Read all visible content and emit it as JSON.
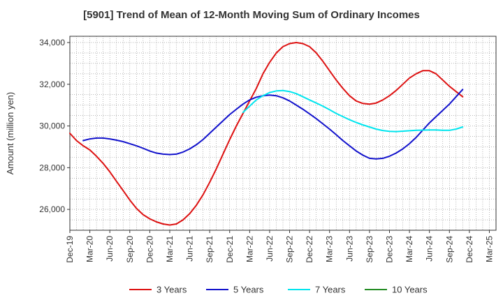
{
  "chart_data": {
    "type": "line",
    "title": "[5901]  Trend of Mean of 12-Month Moving Sum of Ordinary Incomes",
    "xlabel": "",
    "ylabel": "Amount (million yen)",
    "ylim": [
      25000,
      34300
    ],
    "yticks": [
      26000,
      28000,
      30000,
      32000,
      34000
    ],
    "ytick_labels": [
      "26,000",
      "28,000",
      "30,000",
      "32,000",
      "34,000"
    ],
    "grid": true,
    "legend_position": "bottom",
    "x_tick_labels": [
      "Dec-19",
      "Mar-20",
      "Jun-20",
      "Sep-20",
      "Dec-20",
      "Mar-21",
      "Jun-21",
      "Sep-21",
      "Dec-21",
      "Mar-22",
      "Jun-22",
      "Sep-22",
      "Dec-22",
      "Mar-23",
      "Jun-23",
      "Sep-23",
      "Dec-23",
      "Mar-24",
      "Jun-24",
      "Sep-24",
      "Dec-24",
      "Mar-25"
    ],
    "x_start": "Dec-19",
    "x_month_count": 64,
    "series": [
      {
        "name": "3 Years",
        "color": "#dd1111",
        "start_month": 0,
        "values": [
          29650,
          29300,
          29050,
          28850,
          28550,
          28200,
          27800,
          27350,
          26900,
          26450,
          26050,
          25750,
          25550,
          25400,
          25300,
          25250,
          25300,
          25500,
          25800,
          26200,
          26700,
          27300,
          27950,
          28650,
          29350,
          30000,
          30600,
          31200,
          31800,
          32500,
          33050,
          33500,
          33800,
          33950,
          34000,
          33950,
          33800,
          33500,
          33100,
          32650,
          32200,
          31800,
          31450,
          31200,
          31080,
          31050,
          31100,
          31250,
          31450,
          31700,
          32000,
          32300,
          32500,
          32650,
          32650,
          32500,
          32200,
          31900,
          31650,
          31400
        ]
      },
      {
        "name": "5 Years",
        "color": "#1111cc",
        "start_month": 2,
        "values": [
          29300,
          29380,
          29420,
          29420,
          29380,
          29320,
          29250,
          29150,
          29050,
          28930,
          28800,
          28700,
          28650,
          28630,
          28650,
          28750,
          28900,
          29100,
          29350,
          29650,
          29950,
          30250,
          30550,
          30800,
          31050,
          31250,
          31380,
          31450,
          31480,
          31450,
          31350,
          31200,
          31000,
          30800,
          30580,
          30350,
          30100,
          29850,
          29580,
          29300,
          29050,
          28800,
          28600,
          28450,
          28420,
          28450,
          28550,
          28700,
          28900,
          29150,
          29450,
          29800,
          30150,
          30450,
          30750,
          31050,
          31400,
          31750
        ]
      },
      {
        "name": "7 Years",
        "color": "#00e5ee",
        "start_month": 26,
        "values": [
          30650,
          30950,
          31250,
          31450,
          31600,
          31680,
          31700,
          31650,
          31550,
          31400,
          31250,
          31100,
          30950,
          30780,
          30600,
          30450,
          30300,
          30170,
          30050,
          29950,
          29850,
          29780,
          29740,
          29730,
          29750,
          29770,
          29790,
          29800,
          29810,
          29810,
          29790,
          29790,
          29850,
          29950
        ]
      },
      {
        "name": "10 Years",
        "color": "#228b22",
        "start_month": 0,
        "values": []
      }
    ]
  }
}
